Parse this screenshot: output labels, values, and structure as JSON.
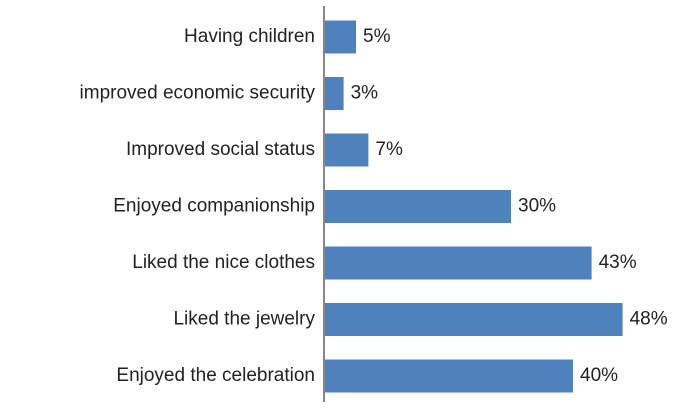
{
  "chart_data": {
    "type": "bar",
    "orientation": "horizontal",
    "title": "",
    "xlabel": "",
    "ylabel": "",
    "categories": [
      "Having children",
      "improved economic security",
      "Improved social status",
      "Enjoyed companionship",
      "Liked the nice clothes",
      "Liked the jewelry",
      "Enjoyed the celebration"
    ],
    "values": [
      5,
      3,
      7,
      30,
      43,
      48,
      40
    ],
    "value_labels": [
      "5%",
      "3%",
      "7%",
      "30%",
      "43%",
      "48%",
      "40%"
    ],
    "xlim": [
      0,
      50
    ],
    "grid": false,
    "legend": "none",
    "colors": {
      "bar": "#4F81BD",
      "axis": "#868686",
      "text": "#222222"
    }
  }
}
